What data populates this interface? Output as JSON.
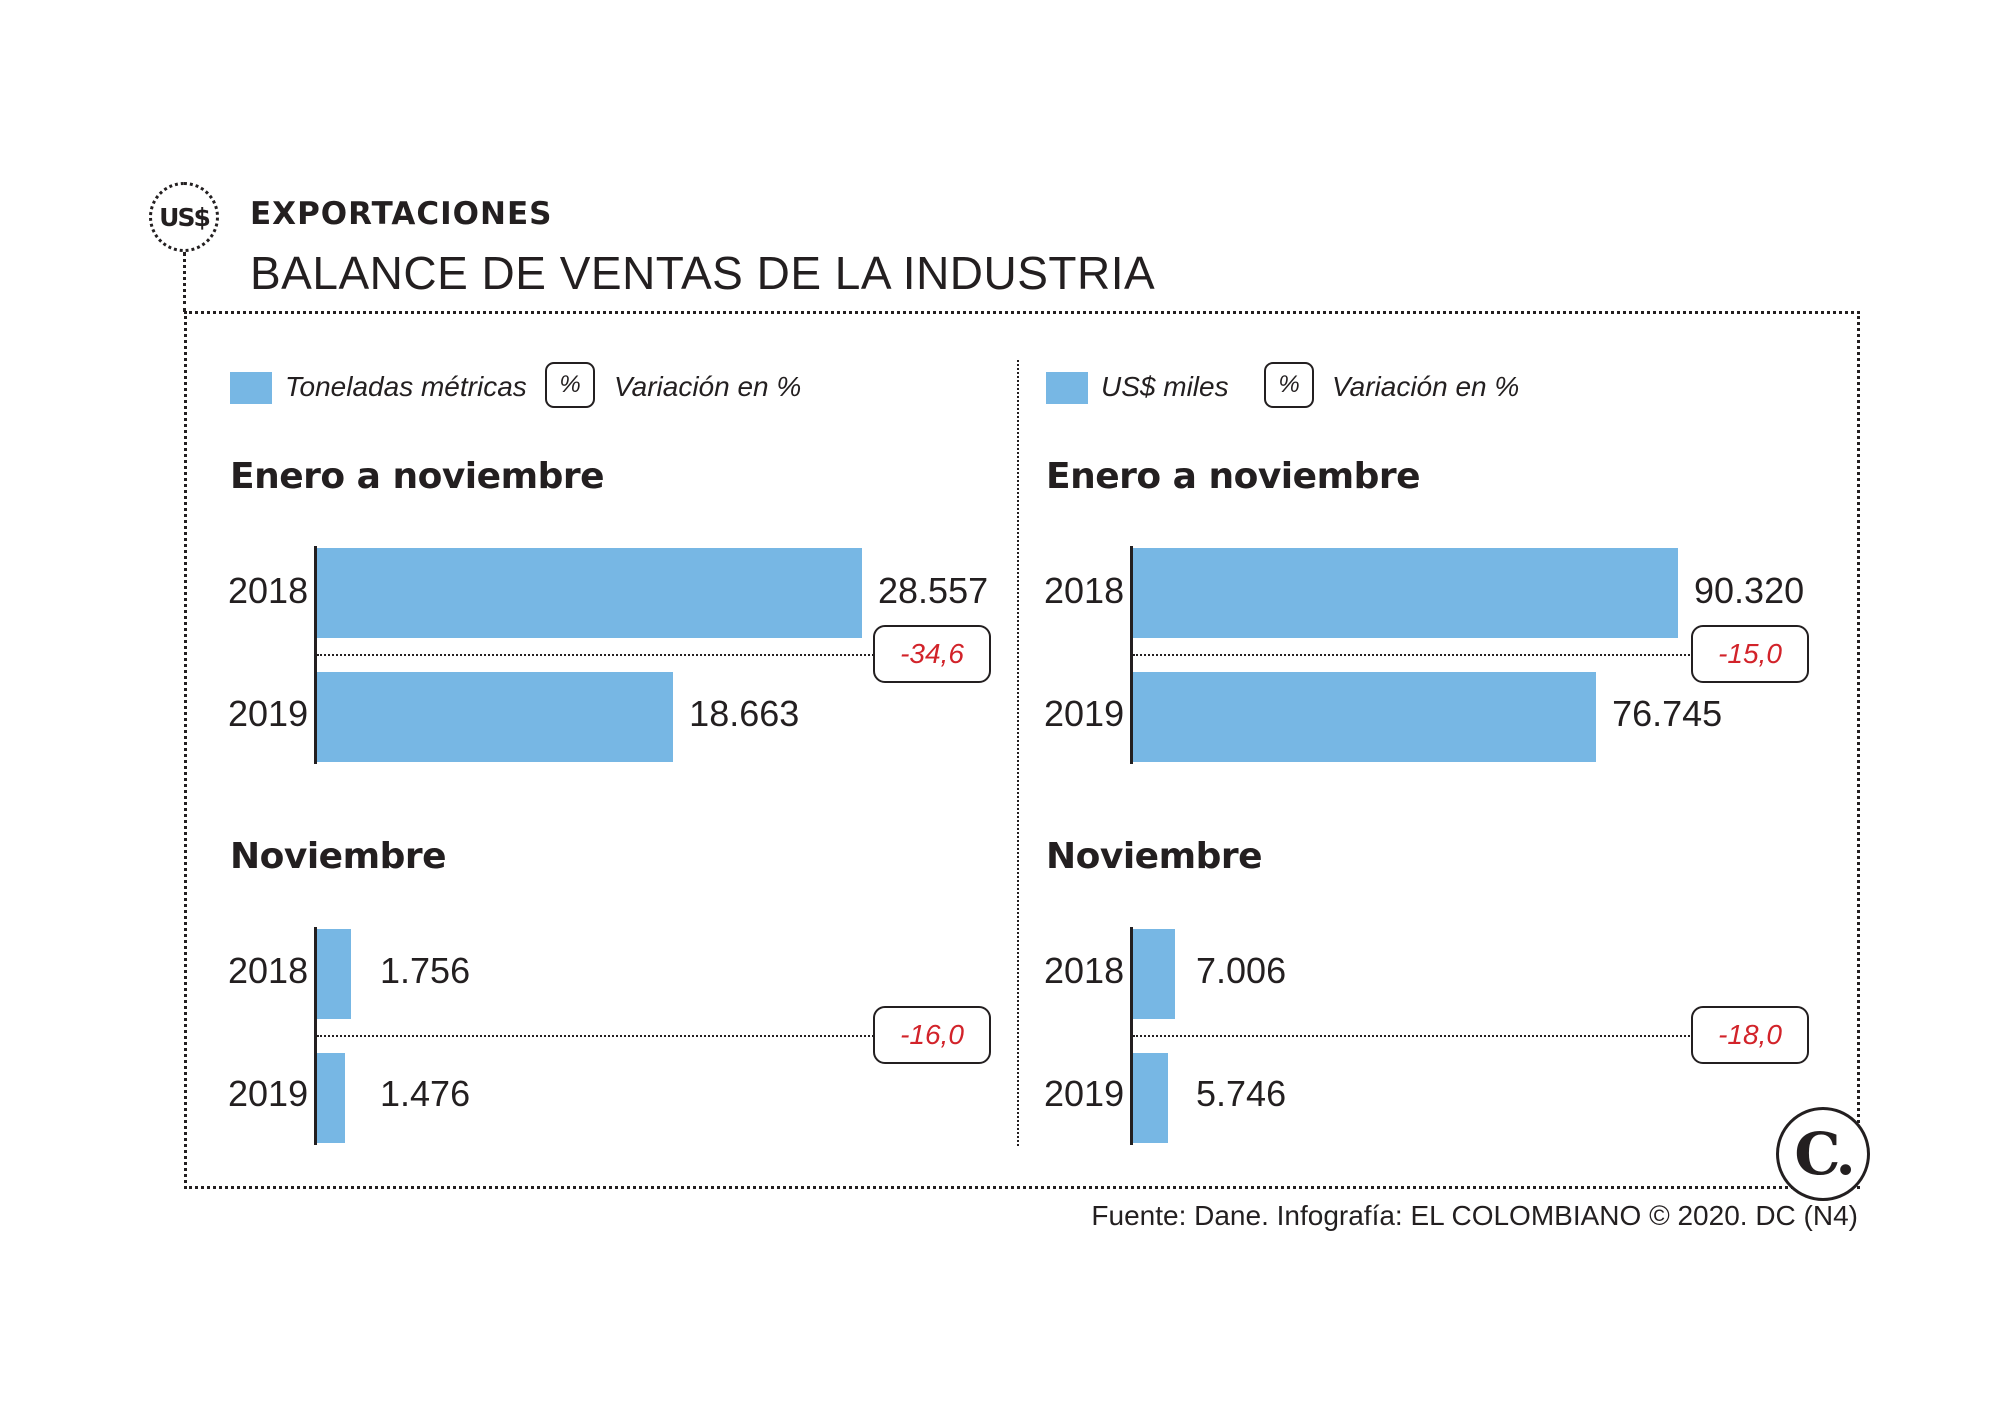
{
  "header": {
    "icon_text": "US$",
    "kicker": "EXPORTACIONES",
    "title": "BALANCE DE VENTAS DE LA INDUSTRIA"
  },
  "footer": "Fuente: Dane. Infografía: EL COLOMBIANO © 2020. DC (N4)",
  "logo_text": "C.",
  "colors": {
    "bar": "#77b7e4",
    "variation": "#d2232a",
    "ink": "#231f20"
  },
  "chart_data": [
    {
      "type": "bar",
      "orientation": "horizontal",
      "legend": {
        "series_label": "Toneladas métricas",
        "pct_symbol": "%",
        "variation_label": "Variación en %"
      },
      "groups": [
        {
          "title": "Enero a noviembre",
          "categories": [
            "2018",
            "2019"
          ],
          "values": [
            28557,
            18663
          ],
          "labels": [
            "28.557",
            "18.663"
          ],
          "variation": "-34,6",
          "xmax": 28557
        },
        {
          "title": "Noviembre",
          "categories": [
            "2018",
            "2019"
          ],
          "values": [
            1756,
            1476
          ],
          "labels": [
            "1.756",
            "1.476"
          ],
          "variation": "-16,0",
          "xmax": 28557
        }
      ]
    },
    {
      "type": "bar",
      "orientation": "horizontal",
      "legend": {
        "series_label": "US$ miles",
        "pct_symbol": "%",
        "variation_label": "Variación en %"
      },
      "groups": [
        {
          "title": "Enero a noviembre",
          "categories": [
            "2018",
            "2019"
          ],
          "values": [
            90320,
            76745
          ],
          "labels": [
            "90.320",
            "76.745"
          ],
          "variation": "-15,0",
          "xmax": 90320
        },
        {
          "title": "Noviembre",
          "categories": [
            "2018",
            "2019"
          ],
          "values": [
            7006,
            5746
          ],
          "labels": [
            "7.006",
            "5.746"
          ],
          "variation": "-18,0",
          "xmax": 90320
        }
      ]
    }
  ]
}
